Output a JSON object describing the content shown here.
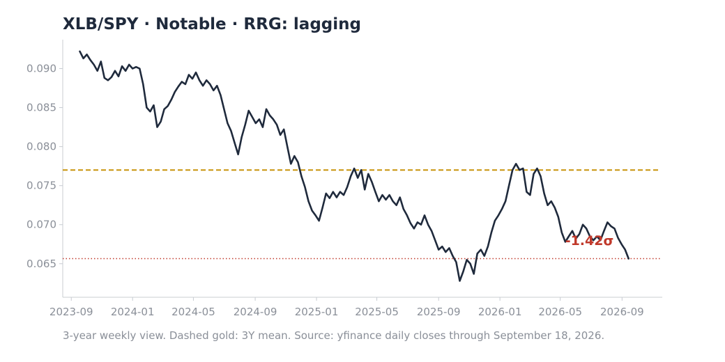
{
  "chart_data": {
    "type": "line",
    "title": "XLB/SPY  ·  Notable  ·  RRG: lagging",
    "caption": "3-year weekly view. Dashed gold: 3Y mean. Source: yfinance daily closes through September 18, 2026.",
    "xlabel": "",
    "ylabel": "",
    "xlim": [
      "2023-08-15",
      "2026-11-20"
    ],
    "ylim": [
      0.0607,
      0.0937
    ],
    "x_ticks": [
      "2023-09",
      "2024-01",
      "2024-05",
      "2024-09",
      "2025-01",
      "2025-05",
      "2025-09",
      "2026-01",
      "2026-05",
      "2026-09"
    ],
    "y_ticks": [
      "0.065",
      "0.070",
      "0.075",
      "0.080",
      "0.085",
      "0.090"
    ],
    "grid": false,
    "legend": "none",
    "mean_line": {
      "value": 0.077,
      "style": "dashed",
      "color": "#c8930a"
    },
    "current_line": {
      "value": 0.06565,
      "style": "dotted",
      "color": "#c0392b"
    },
    "annotation": {
      "text": "-1.42σ",
      "x": "2026-06-28",
      "y": 0.068,
      "color": "#c0392b"
    },
    "series": [
      {
        "color": "#1f2a3c",
        "points": [
          [
            "2023-09-18",
            0.0922
          ],
          [
            "2023-09-25",
            0.0913
          ],
          [
            "2023-10-02",
            0.0918
          ],
          [
            "2023-10-09",
            0.0911
          ],
          [
            "2023-10-16",
            0.0905
          ],
          [
            "2023-10-23",
            0.0897
          ],
          [
            "2023-10-30",
            0.0909
          ],
          [
            "2023-11-06",
            0.0888
          ],
          [
            "2023-11-13",
            0.0885
          ],
          [
            "2023-11-20",
            0.0889
          ],
          [
            "2023-11-27",
            0.0897
          ],
          [
            "2023-12-04",
            0.089
          ],
          [
            "2023-12-11",
            0.0903
          ],
          [
            "2023-12-18",
            0.0897
          ],
          [
            "2023-12-25",
            0.0905
          ],
          [
            "2024-01-01",
            0.09
          ],
          [
            "2024-01-08",
            0.0902
          ],
          [
            "2024-01-15",
            0.09
          ],
          [
            "2024-01-22",
            0.088
          ],
          [
            "2024-01-29",
            0.085
          ],
          [
            "2024-02-05",
            0.0845
          ],
          [
            "2024-02-12",
            0.0853
          ],
          [
            "2024-02-19",
            0.0825
          ],
          [
            "2024-02-26",
            0.0832
          ],
          [
            "2024-03-04",
            0.0848
          ],
          [
            "2024-03-11",
            0.0852
          ],
          [
            "2024-03-18",
            0.086
          ],
          [
            "2024-03-25",
            0.087
          ],
          [
            "2024-04-01",
            0.0877
          ],
          [
            "2024-04-08",
            0.0883
          ],
          [
            "2024-04-15",
            0.088
          ],
          [
            "2024-04-22",
            0.0892
          ],
          [
            "2024-04-29",
            0.0887
          ],
          [
            "2024-05-06",
            0.0895
          ],
          [
            "2024-05-13",
            0.0885
          ],
          [
            "2024-05-20",
            0.0878
          ],
          [
            "2024-05-27",
            0.0885
          ],
          [
            "2024-06-03",
            0.088
          ],
          [
            "2024-06-10",
            0.0872
          ],
          [
            "2024-06-17",
            0.0878
          ],
          [
            "2024-06-24",
            0.0866
          ],
          [
            "2024-07-01",
            0.0848
          ],
          [
            "2024-07-08",
            0.083
          ],
          [
            "2024-07-15",
            0.082
          ],
          [
            "2024-07-22",
            0.0805
          ],
          [
            "2024-07-29",
            0.079
          ],
          [
            "2024-08-05",
            0.0812
          ],
          [
            "2024-08-12",
            0.0828
          ],
          [
            "2024-08-19",
            0.0846
          ],
          [
            "2024-08-26",
            0.0838
          ],
          [
            "2024-09-02",
            0.083
          ],
          [
            "2024-09-09",
            0.0835
          ],
          [
            "2024-09-16",
            0.0825
          ],
          [
            "2024-09-23",
            0.0848
          ],
          [
            "2024-09-30",
            0.084
          ],
          [
            "2024-10-07",
            0.0835
          ],
          [
            "2024-10-14",
            0.0828
          ],
          [
            "2024-10-21",
            0.0815
          ],
          [
            "2024-10-28",
            0.0822
          ],
          [
            "2024-11-04",
            0.08
          ],
          [
            "2024-11-11",
            0.0778
          ],
          [
            "2024-11-18",
            0.0788
          ],
          [
            "2024-11-25",
            0.078
          ],
          [
            "2024-12-02",
            0.0762
          ],
          [
            "2024-12-09",
            0.0748
          ],
          [
            "2024-12-16",
            0.073
          ],
          [
            "2024-12-23",
            0.0718
          ],
          [
            "2024-12-30",
            0.0712
          ],
          [
            "2025-01-06",
            0.0705
          ],
          [
            "2025-01-13",
            0.0722
          ],
          [
            "2025-01-20",
            0.074
          ],
          [
            "2025-01-27",
            0.0734
          ],
          [
            "2025-02-03",
            0.0742
          ],
          [
            "2025-02-10",
            0.0735
          ],
          [
            "2025-02-17",
            0.0742
          ],
          [
            "2025-02-24",
            0.0738
          ],
          [
            "2025-03-03",
            0.0748
          ],
          [
            "2025-03-10",
            0.0762
          ],
          [
            "2025-03-17",
            0.0772
          ],
          [
            "2025-03-24",
            0.076
          ],
          [
            "2025-03-31",
            0.077
          ],
          [
            "2025-04-07",
            0.0745
          ],
          [
            "2025-04-14",
            0.0765
          ],
          [
            "2025-04-21",
            0.0755
          ],
          [
            "2025-04-28",
            0.0742
          ],
          [
            "2025-05-05",
            0.073
          ],
          [
            "2025-05-12",
            0.0738
          ],
          [
            "2025-05-19",
            0.0732
          ],
          [
            "2025-05-26",
            0.0738
          ],
          [
            "2025-06-02",
            0.073
          ],
          [
            "2025-06-09",
            0.0725
          ],
          [
            "2025-06-16",
            0.0735
          ],
          [
            "2025-06-23",
            0.072
          ],
          [
            "2025-06-30",
            0.0712
          ],
          [
            "2025-07-07",
            0.0702
          ],
          [
            "2025-07-14",
            0.0695
          ],
          [
            "2025-07-21",
            0.0703
          ],
          [
            "2025-07-28",
            0.07
          ],
          [
            "2025-08-04",
            0.0712
          ],
          [
            "2025-08-11",
            0.07
          ],
          [
            "2025-08-18",
            0.0692
          ],
          [
            "2025-08-25",
            0.068
          ],
          [
            "2025-09-01",
            0.0668
          ],
          [
            "2025-09-08",
            0.0672
          ],
          [
            "2025-09-15",
            0.0665
          ],
          [
            "2025-09-22",
            0.067
          ],
          [
            "2025-09-29",
            0.066
          ],
          [
            "2025-10-06",
            0.0652
          ],
          [
            "2025-10-13",
            0.0628
          ],
          [
            "2025-10-20",
            0.064
          ],
          [
            "2025-10-27",
            0.0655
          ],
          [
            "2025-11-03",
            0.065
          ],
          [
            "2025-11-10",
            0.0637
          ],
          [
            "2025-11-17",
            0.0663
          ],
          [
            "2025-11-24",
            0.0668
          ],
          [
            "2025-12-01",
            0.066
          ],
          [
            "2025-12-08",
            0.0672
          ],
          [
            "2025-12-15",
            0.069
          ],
          [
            "2025-12-22",
            0.0705
          ],
          [
            "2025-12-29",
            0.0712
          ],
          [
            "2026-01-05",
            0.072
          ],
          [
            "2026-01-12",
            0.073
          ],
          [
            "2026-01-19",
            0.075
          ],
          [
            "2026-01-26",
            0.077
          ],
          [
            "2026-02-02",
            0.0778
          ],
          [
            "2026-02-09",
            0.077
          ],
          [
            "2026-02-16",
            0.0772
          ],
          [
            "2026-02-23",
            0.0742
          ],
          [
            "2026-03-02",
            0.0738
          ],
          [
            "2026-03-09",
            0.0765
          ],
          [
            "2026-03-16",
            0.0772
          ],
          [
            "2026-03-23",
            0.0762
          ],
          [
            "2026-03-30",
            0.074
          ],
          [
            "2026-04-06",
            0.0725
          ],
          [
            "2026-04-13",
            0.073
          ],
          [
            "2026-04-20",
            0.0722
          ],
          [
            "2026-04-27",
            0.071
          ],
          [
            "2026-05-04",
            0.069
          ],
          [
            "2026-05-11",
            0.0678
          ],
          [
            "2026-05-18",
            0.0685
          ],
          [
            "2026-05-25",
            0.0692
          ],
          [
            "2026-06-01",
            0.0682
          ],
          [
            "2026-06-08",
            0.0688
          ],
          [
            "2026-06-15",
            0.07
          ],
          [
            "2026-06-22",
            0.0695
          ],
          [
            "2026-06-29",
            0.0685
          ],
          [
            "2026-07-06",
            0.068
          ],
          [
            "2026-07-13",
            0.0685
          ],
          [
            "2026-07-20",
            0.068
          ],
          [
            "2026-07-27",
            0.0692
          ],
          [
            "2026-08-03",
            0.0703
          ],
          [
            "2026-08-10",
            0.0698
          ],
          [
            "2026-08-17",
            0.0695
          ],
          [
            "2026-08-24",
            0.0683
          ],
          [
            "2026-08-31",
            0.0675
          ],
          [
            "2026-09-07",
            0.0668
          ],
          [
            "2026-09-14",
            0.06565
          ]
        ]
      }
    ]
  }
}
